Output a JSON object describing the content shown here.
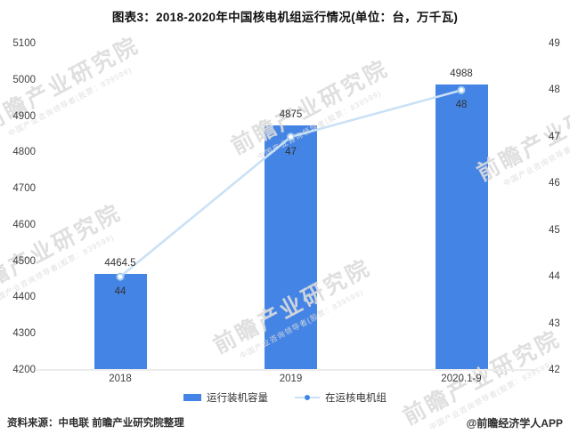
{
  "title": "图表3：2018-2020年中国核电机组运行情况(单位：台，万千瓦)",
  "chart_data": {
    "type": "bar+line combo",
    "categories": [
      "2018",
      "2019",
      "2020.1-9"
    ],
    "series": [
      {
        "name": "运行装机容量",
        "type": "bar",
        "axis": "left",
        "unit": "万千瓦",
        "values": [
          4464.5,
          4875,
          4988
        ],
        "labels": [
          "4464.5",
          "4875",
          "4988"
        ],
        "color": "#4484e4"
      },
      {
        "name": "在运核电机组",
        "type": "line",
        "axis": "right",
        "unit": "台",
        "values": [
          44,
          47,
          48
        ],
        "labels": [
          "44",
          "47",
          "48"
        ],
        "color": "#c9e0f6",
        "marker_fill": "#ffffff",
        "marker_stroke": "#a5cbee",
        "legend_dot_color": "#4285e4"
      }
    ],
    "left_axis": {
      "min": 4200,
      "max": 5100,
      "ticks": [
        5100,
        5000,
        4900,
        4800,
        4700,
        4600,
        4500,
        4400,
        4300,
        4200
      ]
    },
    "right_axis": {
      "min": 42,
      "max": 49,
      "ticks": [
        49,
        48,
        47,
        46,
        45,
        44,
        43,
        42
      ]
    },
    "grid": false,
    "legend_position": "bottom"
  },
  "footer": {
    "source": "资料来源：中电联 前瞻产业研究院整理",
    "credit": "@前瞻经济学人APP"
  },
  "watermark": {
    "text": "前瞻产业研究院",
    "subtext": "中国产业咨询领导者(股票：839599)"
  },
  "colors": {
    "background": "#ffffff",
    "axis_line": "#ececec",
    "axis_text": "#3f3f3f",
    "label_text": "#333333",
    "title_text": "#111111",
    "watermark": "#dcdcdc"
  }
}
